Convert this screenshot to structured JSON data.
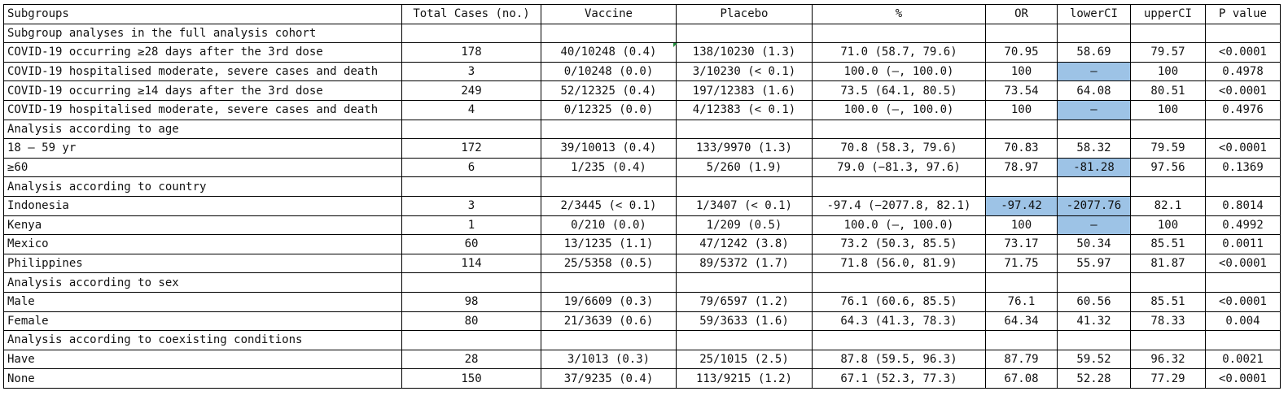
{
  "header": [
    "Subgroups",
    "Total Cases (no.)",
    "Vaccine",
    "Placebo",
    "%",
    "OR",
    "lowerCI",
    "upperCI",
    "P value"
  ],
  "rows": [
    {
      "section": "Subgroup analyses in the full analysis cohort"
    },
    {
      "cells": [
        "COVID-19 occurring ≥28 days after the 3rd dose",
        "178",
        "40/10248 (0.4)",
        "138/10230 (1.3)",
        "71.0 (58.7, 79.6)",
        "70.95",
        "58.69",
        "79.57",
        "<0.0001"
      ],
      "hl": []
    },
    {
      "cells": [
        "COVID-19 hospitalised moderate, severe cases and death",
        "3",
        "0/10248 (0.0)",
        "3/10230 (< 0.1)",
        "100.0 (–, 100.0)",
        "100",
        "–",
        "100",
        "0.4978"
      ],
      "hl": [
        6
      ]
    },
    {
      "cells": [
        "COVID-19 occurring ≥14 days after the 3rd dose",
        "249",
        "52/12325 (0.4)",
        "197/12383 (1.6)",
        "73.5 (64.1, 80.5)",
        "73.54",
        "64.08",
        "80.51",
        "<0.0001"
      ],
      "hl": []
    },
    {
      "cells": [
        "COVID-19 hospitalised moderate, severe cases and death",
        "4",
        "0/12325 (0.0)",
        "4/12383 (< 0.1)",
        "100.0 (–, 100.0)",
        "100",
        "–",
        "100",
        "0.4976"
      ],
      "hl": [
        6
      ]
    },
    {
      "section": "Analysis according to age"
    },
    {
      "cells": [
        "18 – 59 yr",
        "172",
        "39/10013 (0.4)",
        "133/9970 (1.3)",
        "70.8 (58.3, 79.6)",
        "70.83",
        "58.32",
        "79.59",
        "<0.0001"
      ],
      "hl": []
    },
    {
      "cells": [
        "≥60",
        "6",
        "1/235 (0.4)",
        "5/260 (1.9)",
        "79.0 (−81.3, 97.6)",
        "78.97",
        "-81.28",
        "97.56",
        "0.1369"
      ],
      "hl": [
        6
      ]
    },
    {
      "section": "Analysis according to country"
    },
    {
      "cells": [
        "Indonesia",
        "3",
        "2/3445 (< 0.1)",
        "1/3407 (< 0.1)",
        "-97.4 (−2077.8, 82.1)",
        "-97.42",
        "-2077.76",
        "82.1",
        "0.8014"
      ],
      "hl": [
        5,
        6
      ]
    },
    {
      "cells": [
        "Kenya",
        "1",
        "0/210 (0.0)",
        "1/209 (0.5)",
        "100.0 (–, 100.0)",
        "100",
        "–",
        "100",
        "0.4992"
      ],
      "hl": [
        6
      ]
    },
    {
      "cells": [
        "Mexico",
        "60",
        "13/1235 (1.1)",
        "47/1242 (3.8)",
        "73.2 (50.3, 85.5)",
        "73.17",
        "50.34",
        "85.51",
        "0.0011"
      ],
      "hl": []
    },
    {
      "cells": [
        "Philippines",
        "114",
        "25/5358 (0.5)",
        "89/5372 (1.7)",
        "71.8 (56.0, 81.9)",
        "71.75",
        "55.97",
        "81.87",
        "<0.0001"
      ],
      "hl": []
    },
    {
      "section": "Analysis according to sex"
    },
    {
      "cells": [
        "Male",
        "98",
        "19/6609 (0.3)",
        "79/6597 (1.2)",
        "76.1 (60.6, 85.5)",
        "76.1",
        "60.56",
        "85.51",
        "<0.0001"
      ],
      "hl": []
    },
    {
      "cells": [
        "Female",
        "80",
        "21/3639 (0.6)",
        "59/3633 (1.6)",
        "64.3 (41.3, 78.3)",
        "64.34",
        "41.32",
        "78.33",
        "0.004"
      ],
      "hl": []
    },
    {
      "section": "Analysis according to coexisting conditions"
    },
    {
      "cells": [
        "Have",
        "28",
        "3/1013 (0.3)",
        "25/1015 (2.5)",
        "87.8 (59.5, 96.3)",
        "87.79",
        "59.52",
        "96.32",
        "0.0021"
      ],
      "hl": []
    },
    {
      "cells": [
        "None",
        "150",
        "37/9235 (0.4)",
        "113/9215 (1.2)",
        "67.1 (52.3, 77.3)",
        "67.08",
        "52.28",
        "77.29",
        "<0.0001"
      ],
      "hl": []
    }
  ],
  "colors": {
    "highlight": "#9dc3e6",
    "border": "#000000",
    "text": "#111111"
  }
}
